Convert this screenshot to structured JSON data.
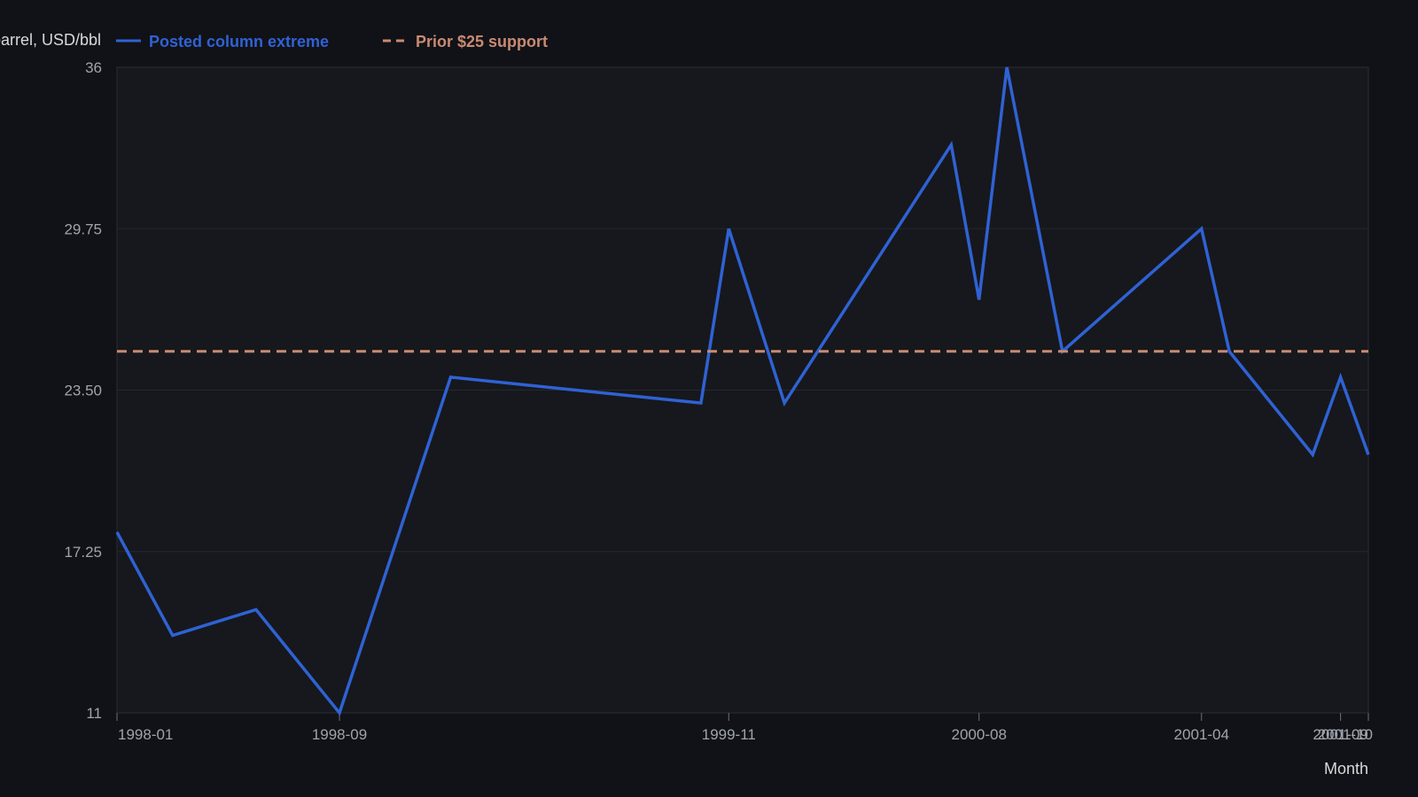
{
  "chart_data": {
    "type": "line",
    "ylabel": "Price per barrel, USD/bbl",
    "xlabel": "Month",
    "ylim": [
      11,
      36
    ],
    "yticks": [
      11,
      17.25,
      23.5,
      29.75,
      36
    ],
    "ytick_labels": [
      "11",
      "17.25",
      "23.50",
      "29.75",
      "36"
    ],
    "xlim": [
      "1998-01",
      "2001-10"
    ],
    "xticks": [
      "1998-01",
      "1998-09",
      "1999-11",
      "2000-08",
      "2001-04",
      "2001-09",
      "2001-10"
    ],
    "grid": true,
    "legend": "top-left",
    "series": [
      {
        "name": "Posted column extreme",
        "color": "#2f62d4",
        "style": "solid",
        "x": [
          "1998-01",
          "1998-03",
          "1998-06",
          "1998-09",
          "1999-01",
          "1999-10",
          "1999-11",
          "2000-01",
          "2000-07",
          "2000-08",
          "2000-09",
          "2000-11",
          "2001-04",
          "2001-05",
          "2001-08",
          "2001-09",
          "2001-10"
        ],
        "values": [
          18,
          14,
          15,
          11,
          24,
          23,
          29.75,
          23,
          33,
          27,
          36,
          25,
          29.75,
          25,
          21,
          24,
          21
        ]
      },
      {
        "name": "Prior $25 support",
        "color": "#c98a72",
        "style": "dashed",
        "x": [
          "1998-01",
          "2001-10"
        ],
        "values": [
          25,
          25
        ]
      }
    ]
  }
}
